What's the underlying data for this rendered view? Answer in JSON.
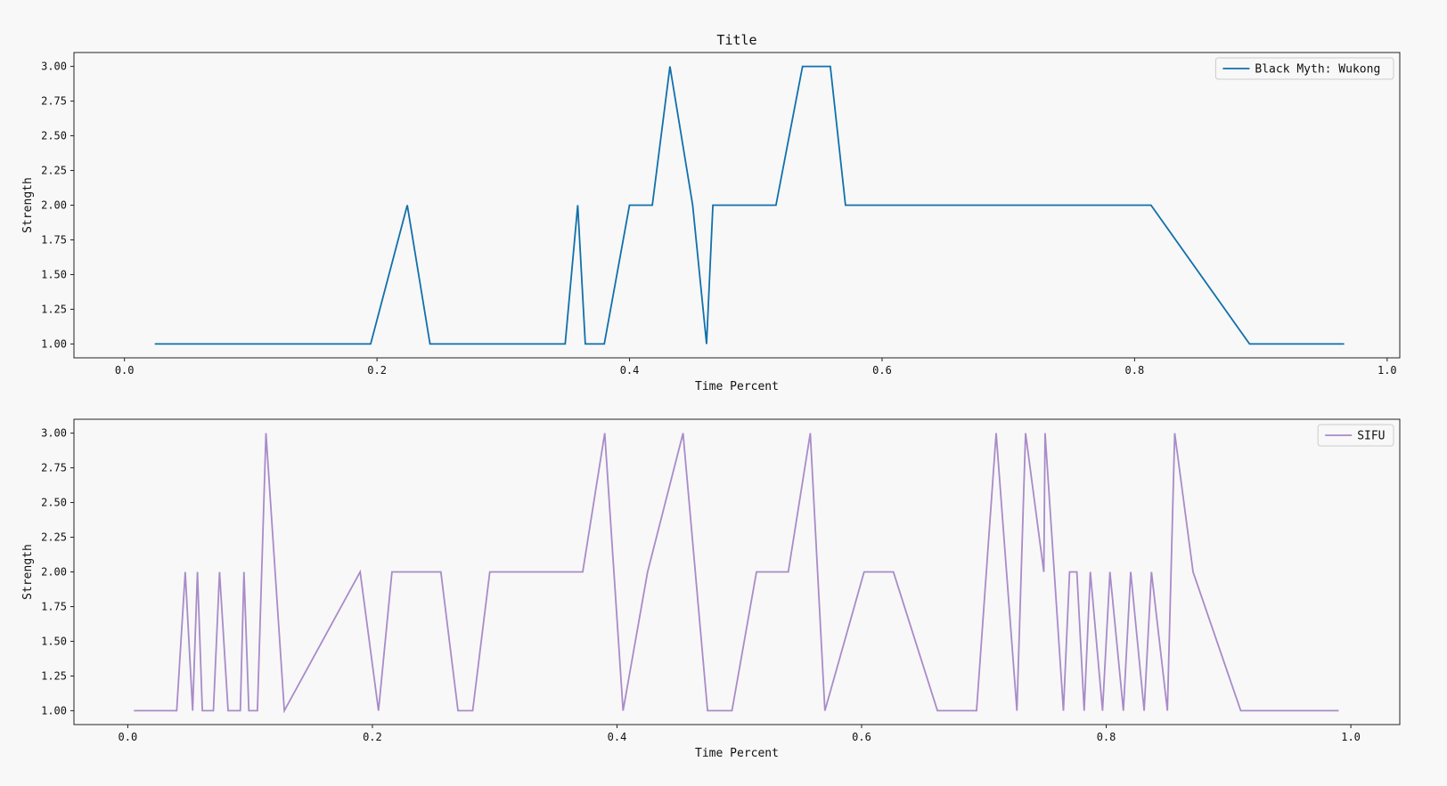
{
  "chart_data": [
    {
      "type": "line",
      "title": "Title",
      "xlabel": "Time Percent",
      "ylabel": "Strength",
      "xlim": [
        -0.04,
        1.01
      ],
      "ylim": [
        0.9,
        3.1
      ],
      "xticks": [
        0.0,
        0.2,
        0.4,
        0.6,
        0.8,
        1.0
      ],
      "xtick_labels": [
        "0.0",
        "0.2",
        "0.4",
        "0.6",
        "0.8",
        "1.0"
      ],
      "yticks": [
        1.0,
        1.25,
        1.5,
        1.75,
        2.0,
        2.25,
        2.5,
        2.75,
        3.0
      ],
      "ytick_labels": [
        "1.00",
        "1.25",
        "1.50",
        "1.75",
        "2.00",
        "2.25",
        "2.50",
        "2.75",
        "3.00"
      ],
      "legend_position": "top-right",
      "grid": false,
      "series": [
        {
          "name": "Black Myth: Wukong",
          "color": "#1170aa",
          "x": [
            0.024,
            0.195,
            0.224,
            0.242,
            0.349,
            0.359,
            0.365,
            0.38,
            0.4,
            0.418,
            0.432,
            0.45,
            0.461,
            0.466,
            0.516,
            0.537,
            0.559,
            0.571,
            0.813,
            0.891,
            0.966
          ],
          "y": [
            1,
            1,
            2,
            1,
            1,
            2,
            1,
            1,
            2,
            2,
            3,
            2,
            1,
            2,
            2,
            3,
            3,
            2,
            2,
            1,
            1
          ]
        }
      ]
    },
    {
      "type": "line",
      "title": "",
      "xlabel": "Time Percent",
      "ylabel": "Strength",
      "xlim": [
        -0.044,
        1.04
      ],
      "ylim": [
        0.9,
        3.1
      ],
      "xticks": [
        0.0,
        0.2,
        0.4,
        0.6,
        0.8,
        1.0
      ],
      "xtick_labels": [
        "0.0",
        "0.2",
        "0.4",
        "0.6",
        "0.8",
        "1.0"
      ],
      "yticks": [
        1.0,
        1.25,
        1.5,
        1.75,
        2.0,
        2.25,
        2.5,
        2.75,
        3.0
      ],
      "ytick_labels": [
        "1.00",
        "1.25",
        "1.50",
        "1.75",
        "2.00",
        "2.25",
        "2.50",
        "2.75",
        "3.00"
      ],
      "legend_position": "top-right",
      "grid": false,
      "series": [
        {
          "name": "SIFU",
          "color": "#a98bc9",
          "x": [
            0.005,
            0.04,
            0.047,
            0.053,
            0.057,
            0.061,
            0.07,
            0.075,
            0.082,
            0.092,
            0.095,
            0.099,
            0.106,
            0.113,
            0.128,
            0.19,
            0.205,
            0.216,
            0.256,
            0.27,
            0.282,
            0.296,
            0.372,
            0.39,
            0.405,
            0.425,
            0.454,
            0.474,
            0.494,
            0.514,
            0.54,
            0.558,
            0.57,
            0.602,
            0.626,
            0.662,
            0.694,
            0.71,
            0.727,
            0.734,
            0.749,
            0.75,
            0.765,
            0.77,
            0.776,
            0.782,
            0.787,
            0.797,
            0.803,
            0.814,
            0.82,
            0.831,
            0.837,
            0.85,
            0.856,
            0.871,
            0.91,
            0.99
          ],
          "y": [
            1,
            1,
            2,
            1,
            2,
            1,
            1,
            2,
            1,
            1,
            2,
            1,
            1,
            3,
            1,
            2,
            1,
            2,
            2,
            1,
            1,
            2,
            2,
            3,
            1,
            2,
            3,
            1,
            1,
            2,
            2,
            3,
            1,
            2,
            2,
            1,
            1,
            3,
            1,
            3,
            2,
            3,
            1,
            2,
            2,
            1,
            2,
            1,
            2,
            1,
            2,
            1,
            2,
            1,
            3,
            2,
            1,
            1
          ]
        }
      ]
    }
  ]
}
